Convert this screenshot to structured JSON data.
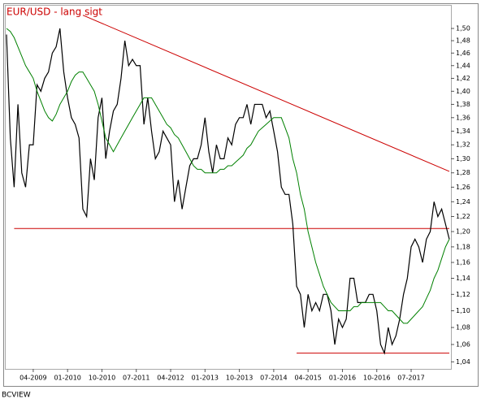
{
  "chart_data": {
    "type": "line",
    "title": "EUR/USD - lang sigt",
    "source": "BCVIEW",
    "x": [
      "09-2008",
      "10-2008",
      "11-2008",
      "12-2008",
      "01-2009",
      "02-2009",
      "03-2009",
      "04-2009",
      "05-2009",
      "06-2009",
      "07-2009",
      "08-2009",
      "09-2009",
      "10-2009",
      "11-2009",
      "12-2009",
      "01-2010",
      "02-2010",
      "03-2010",
      "04-2010",
      "05-2010",
      "06-2010",
      "07-2010",
      "08-2010",
      "09-2010",
      "10-2010",
      "11-2010",
      "12-2010",
      "01-2011",
      "02-2011",
      "03-2011",
      "04-2011",
      "05-2011",
      "06-2011",
      "07-2011",
      "08-2011",
      "09-2011",
      "10-2011",
      "11-2011",
      "12-2011",
      "01-2012",
      "02-2012",
      "03-2012",
      "04-2012",
      "05-2012",
      "06-2012",
      "07-2012",
      "08-2012",
      "09-2012",
      "10-2012",
      "11-2012",
      "12-2012",
      "01-2013",
      "02-2013",
      "03-2013",
      "04-2013",
      "05-2013",
      "06-2013",
      "07-2013",
      "08-2013",
      "09-2013",
      "10-2013",
      "11-2013",
      "12-2013",
      "01-2014",
      "02-2014",
      "03-2014",
      "04-2014",
      "05-2014",
      "06-2014",
      "07-2014",
      "08-2014",
      "09-2014",
      "10-2014",
      "11-2014",
      "12-2014",
      "01-2015",
      "02-2015",
      "03-2015",
      "04-2015",
      "05-2015",
      "06-2015",
      "07-2015",
      "08-2015",
      "09-2015",
      "10-2015",
      "11-2015",
      "12-2015",
      "01-2016",
      "02-2016",
      "03-2016",
      "04-2016",
      "05-2016",
      "06-2016",
      "07-2016",
      "08-2016",
      "09-2016",
      "10-2016",
      "11-2016",
      "12-2016",
      "01-2017",
      "02-2017",
      "03-2017",
      "04-2017",
      "05-2017",
      "06-2017",
      "07-2017",
      "08-2017",
      "09-2017",
      "10-2017",
      "11-2017",
      "12-2017",
      "01-2018",
      "02-2018",
      "03-2018",
      "04-2018",
      "05-2018"
    ],
    "series": [
      {
        "color": "#000000",
        "values": [
          1.49,
          1.33,
          1.26,
          1.38,
          1.28,
          1.26,
          1.32,
          1.32,
          1.41,
          1.4,
          1.42,
          1.43,
          1.46,
          1.47,
          1.5,
          1.43,
          1.39,
          1.36,
          1.35,
          1.33,
          1.23,
          1.22,
          1.3,
          1.27,
          1.36,
          1.39,
          1.3,
          1.34,
          1.37,
          1.38,
          1.42,
          1.48,
          1.44,
          1.45,
          1.44,
          1.44,
          1.35,
          1.39,
          1.34,
          1.3,
          1.31,
          1.34,
          1.33,
          1.32,
          1.24,
          1.27,
          1.23,
          1.26,
          1.29,
          1.3,
          1.3,
          1.32,
          1.36,
          1.31,
          1.28,
          1.32,
          1.3,
          1.3,
          1.33,
          1.32,
          1.35,
          1.36,
          1.36,
          1.38,
          1.35,
          1.38,
          1.38,
          1.38,
          1.36,
          1.37,
          1.34,
          1.31,
          1.26,
          1.25,
          1.25,
          1.21,
          1.13,
          1.12,
          1.08,
          1.12,
          1.1,
          1.11,
          1.1,
          1.12,
          1.12,
          1.1,
          1.06,
          1.09,
          1.08,
          1.09,
          1.14,
          1.14,
          1.11,
          1.11,
          1.11,
          1.12,
          1.12,
          1.1,
          1.06,
          1.05,
          1.08,
          1.06,
          1.07,
          1.09,
          1.12,
          1.14,
          1.18,
          1.19,
          1.18,
          1.16,
          1.19,
          1.2,
          1.24,
          1.22,
          1.23,
          1.21,
          1.19
        ]
      },
      {
        "color": "#008000",
        "values": [
          1.5,
          1.495,
          1.485,
          1.47,
          1.455,
          1.44,
          1.43,
          1.42,
          1.4,
          1.385,
          1.37,
          1.36,
          1.355,
          1.365,
          1.38,
          1.39,
          1.4,
          1.415,
          1.425,
          1.43,
          1.43,
          1.42,
          1.41,
          1.4,
          1.38,
          1.355,
          1.33,
          1.32,
          1.31,
          1.32,
          1.33,
          1.34,
          1.35,
          1.36,
          1.37,
          1.38,
          1.39,
          1.39,
          1.39,
          1.38,
          1.37,
          1.36,
          1.35,
          1.345,
          1.335,
          1.33,
          1.32,
          1.31,
          1.3,
          1.29,
          1.285,
          1.285,
          1.28,
          1.28,
          1.28,
          1.28,
          1.285,
          1.285,
          1.29,
          1.29,
          1.295,
          1.3,
          1.305,
          1.315,
          1.32,
          1.33,
          1.34,
          1.345,
          1.35,
          1.355,
          1.36,
          1.36,
          1.36,
          1.345,
          1.33,
          1.3,
          1.28,
          1.25,
          1.23,
          1.2,
          1.18,
          1.16,
          1.145,
          1.13,
          1.12,
          1.11,
          1.105,
          1.1,
          1.1,
          1.1,
          1.1,
          1.105,
          1.105,
          1.11,
          1.11,
          1.11,
          1.11,
          1.11,
          1.11,
          1.105,
          1.1,
          1.1,
          1.095,
          1.09,
          1.085,
          1.085,
          1.09,
          1.095,
          1.1,
          1.105,
          1.115,
          1.125,
          1.14,
          1.15,
          1.165,
          1.18,
          1.19
        ]
      }
    ],
    "lines": [
      {
        "color": "#cc0000",
        "x": [
          "05-2010",
          "05-2018"
        ],
        "y": [
          1.522,
          1.282
        ]
      },
      {
        "color": "#cc0000",
        "x": [
          "11-2008",
          "05-2018"
        ],
        "y": [
          1.204,
          1.204
        ]
      },
      {
        "color": "#cc0000",
        "x": [
          "01-2015",
          "05-2018"
        ],
        "y": [
          1.05,
          1.05
        ]
      }
    ],
    "xticks": [
      "04-2009",
      "01-2010",
      "10-2010",
      "07-2011",
      "04-2012",
      "01-2013",
      "10-2013",
      "07-2014",
      "04-2015",
      "01-2016",
      "10-2016",
      "07-2017"
    ],
    "ylim": [
      1.032,
      1.538
    ],
    "log": true,
    "grid": false,
    "yticks": [
      {
        "value": 1.04,
        "label": "1,04"
      },
      {
        "value": 1.06,
        "label": "1,06"
      },
      {
        "value": 1.08,
        "label": "1,08"
      },
      {
        "value": 1.1,
        "label": "1,10"
      },
      {
        "value": 1.12,
        "label": "1,12"
      },
      {
        "value": 1.14,
        "label": "1,14"
      },
      {
        "value": 1.16,
        "label": "1,16"
      },
      {
        "value": 1.18,
        "label": "1,18"
      },
      {
        "value": 1.2,
        "label": "1,20"
      },
      {
        "value": 1.22,
        "label": "1,22"
      },
      {
        "value": 1.24,
        "label": "1,24"
      },
      {
        "value": 1.26,
        "label": "1,26"
      },
      {
        "value": 1.28,
        "label": "1,28"
      },
      {
        "value": 1.3,
        "label": "1,30"
      },
      {
        "value": 1.32,
        "label": "1,32"
      },
      {
        "value": 1.34,
        "label": "1,34"
      },
      {
        "value": 1.36,
        "label": "1,36"
      },
      {
        "value": 1.38,
        "label": "1,38"
      },
      {
        "value": 1.4,
        "label": "1,40"
      },
      {
        "value": 1.42,
        "label": "1,42"
      },
      {
        "value": 1.44,
        "label": "1,44"
      },
      {
        "value": 1.46,
        "label": "1,46"
      },
      {
        "value": 1.48,
        "label": "1,48"
      },
      {
        "value": 1.5,
        "label": "1,50"
      }
    ]
  }
}
